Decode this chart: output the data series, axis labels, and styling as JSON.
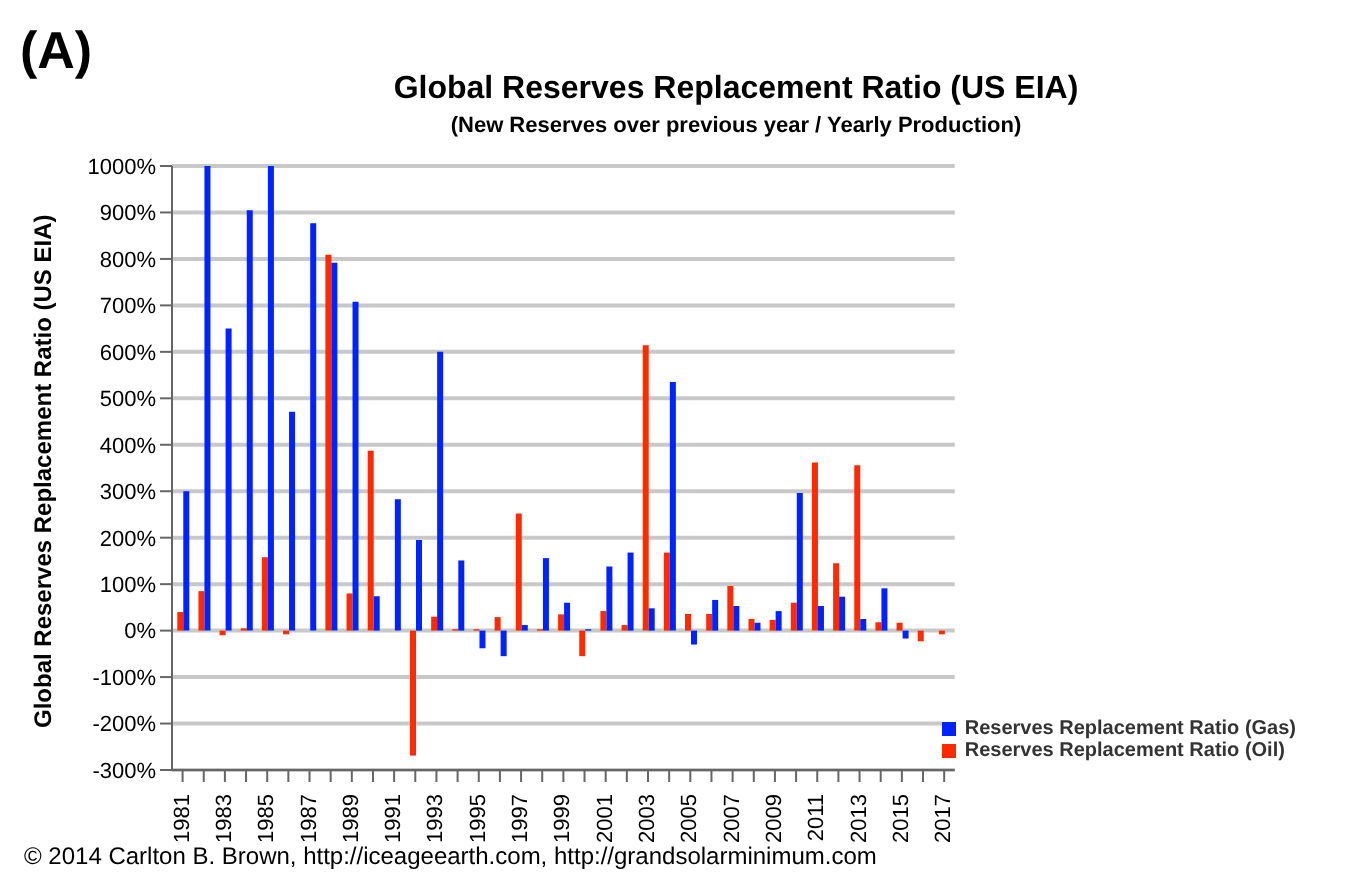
{
  "chart_data": {
    "type": "bar",
    "title": "Global Reserves Replacement Ratio (US EIA)",
    "subtitle": "(New Reserves over previous year / Yearly Production)",
    "ylabel": "Global Reserves Replacement Ratio (US EIA)",
    "annotations": [
      "(A)",
      "© 2014 Carlton B. Brown, http://iceageearth.com, http://grandsolarminimum.com"
    ],
    "categories": [
      "1981",
      null,
      "1983",
      null,
      "1985",
      null,
      "1987",
      null,
      "1989",
      null,
      "1991",
      null,
      "1993",
      null,
      "1995",
      null,
      "1997",
      null,
      "1999",
      null,
      "2001",
      null,
      "2003",
      null,
      "2005",
      null,
      "2007",
      null,
      "2009",
      null,
      "2011",
      null,
      "2013",
      null,
      "2015",
      null,
      "2017"
    ],
    "series": [
      {
        "name": "Reserves Replacement Ratio (Oil)",
        "color": "#ff2a00",
        "values": [
          40,
          85,
          -10,
          5,
          158,
          -8,
          0,
          809,
          80,
          387,
          0,
          -269,
          30,
          3,
          3,
          29,
          252,
          3,
          35,
          -55,
          42,
          12,
          614,
          168,
          36,
          36,
          96,
          25,
          23,
          60,
          362,
          145,
          356,
          18,
          17,
          -23,
          -8
        ]
      },
      {
        "name": "Reserves Replacement Ratio (Gas)",
        "color": "#0022ff",
        "values": [
          300,
          1000,
          650,
          905,
          1000,
          471,
          877,
          792,
          708,
          74,
          283,
          195,
          600,
          151,
          -38,
          -55,
          12,
          156,
          60,
          3,
          138,
          168,
          48,
          535,
          -30,
          66,
          53,
          17,
          42,
          296,
          53,
          73,
          25,
          91,
          -17,
          0,
          0
        ]
      }
    ],
    "ylim": [
      -300,
      1000
    ],
    "yticks": [
      {
        "value": -300,
        "label": "-300%"
      },
      {
        "value": -200,
        "label": "-200%"
      },
      {
        "value": -100,
        "label": "-100%"
      },
      {
        "value": 0,
        "label": "0%"
      },
      {
        "value": 100,
        "label": "100%"
      },
      {
        "value": 200,
        "label": "200%"
      },
      {
        "value": 300,
        "label": "300%"
      },
      {
        "value": 400,
        "label": "400%"
      },
      {
        "value": 500,
        "label": "500%"
      },
      {
        "value": 600,
        "label": "600%"
      },
      {
        "value": 700,
        "label": "700%"
      },
      {
        "value": 800,
        "label": "800%"
      },
      {
        "value": 900,
        "label": "900%"
      },
      {
        "value": 1000,
        "label": "1000%"
      }
    ],
    "grid": "y",
    "legend": "bottom right"
  }
}
